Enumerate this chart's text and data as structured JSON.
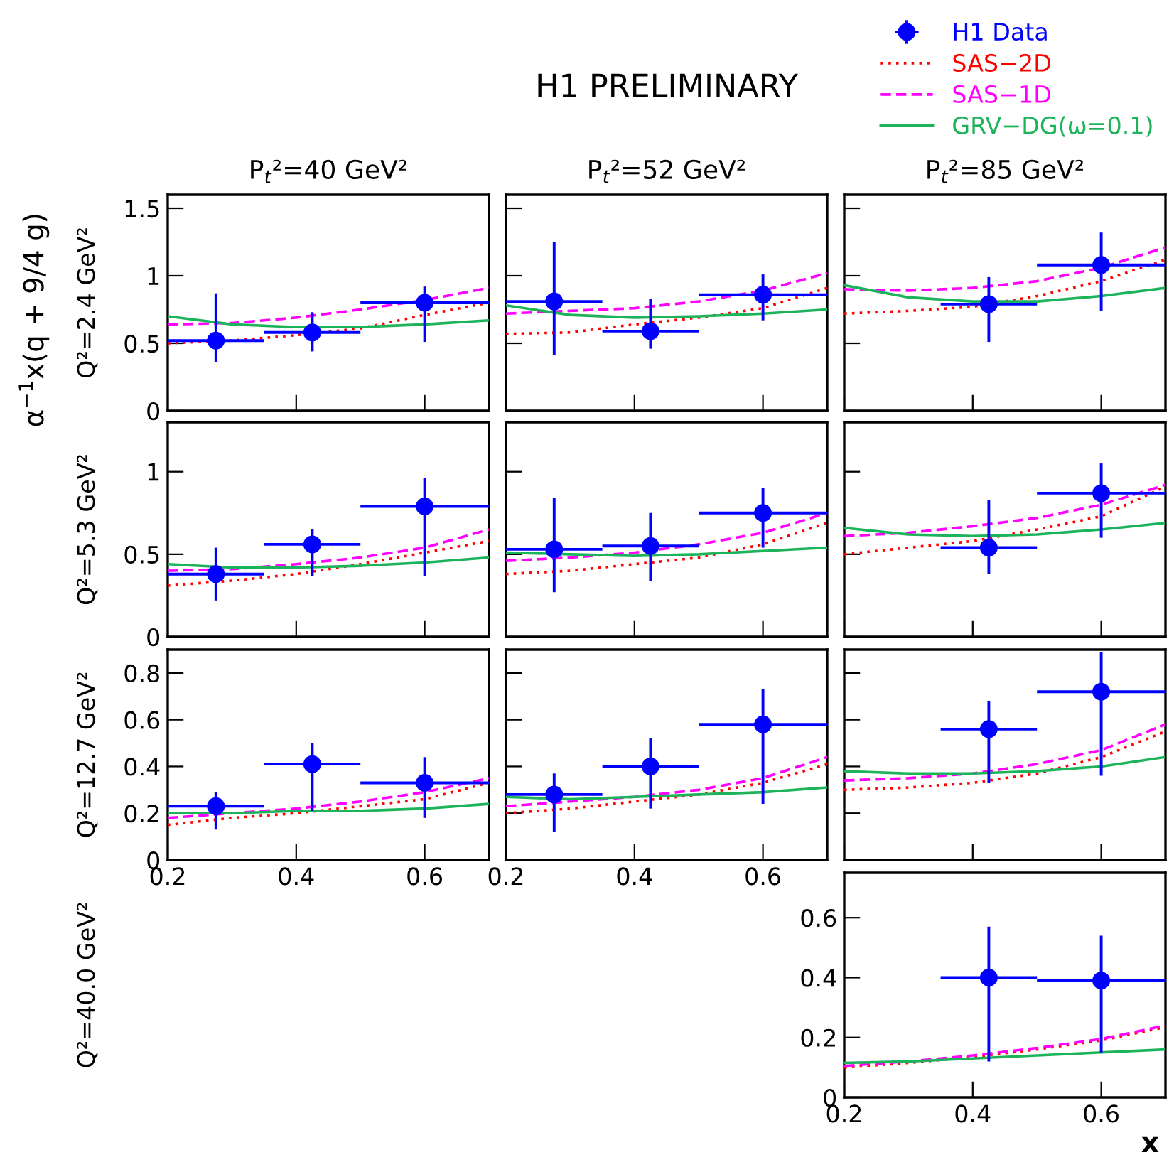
{
  "chart_data": [
    {
      "type": "scatter",
      "title": "P$_{t}$²=40 GeV²",
      "ylabel": "Q²=2.4 GeV²",
      "annotations": [
        "α$^{−1}$x(q + 9/4 g)"
      ],
      "xlim": [
        0.2,
        0.7
      ],
      "ylim": [
        0,
        1.6
      ],
      "xticks": [
        0.2,
        0.4,
        0.6
      ],
      "yticks": [
        0,
        0.5,
        1,
        1.5
      ],
      "tick_labels": "y",
      "series": [
        {
          "color": "#0000ff",
          "marker": "circle",
          "x": [
            0.275,
            0.425,
            0.6
          ],
          "values": [
            0.52,
            0.58,
            0.8
          ],
          "errors": [
            [
              0.36,
              0.87
            ],
            [
              0.44,
              0.73
            ],
            [
              0.51,
              0.92
            ]
          ],
          "xerrors": [
            [
              0.2,
              0.35
            ],
            [
              0.35,
              0.5
            ],
            [
              0.5,
              0.7
            ]
          ]
        },
        {
          "type": "line",
          "color": "#ff0000",
          "line_style": "dotted",
          "x": [
            0.2,
            0.3,
            0.4,
            0.5,
            0.6,
            0.7
          ],
          "values": [
            0.5,
            0.52,
            0.56,
            0.61,
            0.71,
            0.8
          ]
        },
        {
          "type": "line",
          "color": "#ff00ff",
          "line_style": "dashed",
          "x": [
            0.2,
            0.3,
            0.4,
            0.5,
            0.6,
            0.7
          ],
          "values": [
            0.64,
            0.65,
            0.69,
            0.75,
            0.82,
            0.91
          ]
        },
        {
          "type": "line",
          "color": "#1db35a",
          "line_style": "solid",
          "x": [
            0.2,
            0.3,
            0.4,
            0.5,
            0.6,
            0.7
          ],
          "values": [
            0.7,
            0.64,
            0.62,
            0.62,
            0.64,
            0.67
          ]
        }
      ]
    },
    {
      "type": "scatter",
      "title": "P$_{t}$²=52 GeV²",
      "annotations": [
        "H1 PRELIMINARY"
      ],
      "xlim": [
        0.2,
        0.7
      ],
      "ylim": [
        0,
        1.6
      ],
      "xticks": [
        0.2,
        0.4,
        0.6
      ],
      "yticks": [
        0,
        0.5,
        1,
        1.5
      ],
      "tick_labels": false,
      "series": [
        {
          "color": "#0000ff",
          "marker": "circle",
          "x": [
            0.275,
            0.425,
            0.6
          ],
          "values": [
            0.81,
            0.59,
            0.86
          ],
          "errors": [
            [
              0.41,
              1.25
            ],
            [
              0.46,
              0.83
            ],
            [
              0.67,
              1.01
            ]
          ],
          "xerrors": [
            [
              0.2,
              0.35
            ],
            [
              0.35,
              0.5
            ],
            [
              0.5,
              0.7
            ]
          ]
        },
        {
          "type": "line",
          "color": "#ff0000",
          "line_style": "dotted",
          "x": [
            0.2,
            0.3,
            0.4,
            0.5,
            0.6,
            0.7
          ],
          "values": [
            0.57,
            0.58,
            0.64,
            0.69,
            0.76,
            0.91
          ]
        },
        {
          "type": "line",
          "color": "#ff00ff",
          "line_style": "dashed",
          "x": [
            0.2,
            0.3,
            0.4,
            0.5,
            0.6,
            0.7
          ],
          "values": [
            0.72,
            0.74,
            0.76,
            0.81,
            0.89,
            1.02
          ]
        },
        {
          "type": "line",
          "color": "#1db35a",
          "line_style": "solid",
          "x": [
            0.2,
            0.3,
            0.4,
            0.5,
            0.6,
            0.7
          ],
          "values": [
            0.78,
            0.71,
            0.69,
            0.7,
            0.72,
            0.75
          ]
        }
      ]
    },
    {
      "type": "scatter",
      "title": "P$_{t}$²=85 GeV²",
      "legend": "top right",
      "xlim": [
        0.2,
        0.7
      ],
      "ylim": [
        0,
        1.6
      ],
      "xticks": [
        0.2,
        0.4,
        0.6
      ],
      "yticks": [
        0,
        0.5,
        1,
        1.5
      ],
      "tick_labels": false,
      "series": [
        {
          "name": "H1 Data",
          "color": "#0000ff",
          "marker": "circle",
          "x": [
            0.425,
            0.6
          ],
          "values": [
            0.79,
            1.08
          ],
          "errors": [
            [
              0.51,
              0.99
            ],
            [
              0.74,
              1.32
            ]
          ],
          "xerrors": [
            [
              0.35,
              0.5
            ],
            [
              0.5,
              0.7
            ]
          ]
        },
        {
          "type": "line",
          "name": "SAS−2D",
          "color": "#ff0000",
          "line_style": "dotted",
          "x": [
            0.2,
            0.3,
            0.4,
            0.5,
            0.6,
            0.7
          ],
          "values": [
            0.72,
            0.74,
            0.77,
            0.85,
            0.96,
            1.12
          ]
        },
        {
          "type": "line",
          "name": "SAS−1D",
          "color": "#ff00ff",
          "line_style": "dashed",
          "x": [
            0.2,
            0.3,
            0.4,
            0.5,
            0.6,
            0.7
          ],
          "values": [
            0.9,
            0.89,
            0.91,
            0.96,
            1.06,
            1.21
          ]
        },
        {
          "type": "line",
          "name": "GRV−DG(ω=0.1)",
          "color": "#1db35a",
          "line_style": "solid",
          "x": [
            0.2,
            0.3,
            0.4,
            0.5,
            0.6,
            0.7
          ],
          "values": [
            0.93,
            0.84,
            0.81,
            0.81,
            0.85,
            0.91
          ]
        }
      ]
    },
    {
      "type": "scatter",
      "ylabel": "Q²=5.3 GeV²",
      "xlim": [
        0.2,
        0.7
      ],
      "ylim": [
        0,
        1.3
      ],
      "xticks": [
        0.2,
        0.4,
        0.6
      ],
      "yticks": [
        0,
        0.5,
        1
      ],
      "tick_labels": "y",
      "series": [
        {
          "color": "#0000ff",
          "marker": "circle",
          "x": [
            0.275,
            0.425,
            0.6
          ],
          "values": [
            0.38,
            0.56,
            0.79
          ],
          "errors": [
            [
              0.22,
              0.54
            ],
            [
              0.37,
              0.65
            ],
            [
              0.37,
              0.96
            ]
          ],
          "xerrors": [
            [
              0.2,
              0.35
            ],
            [
              0.35,
              0.5
            ],
            [
              0.5,
              0.7
            ]
          ]
        },
        {
          "type": "line",
          "color": "#ff0000",
          "line_style": "dotted",
          "x": [
            0.2,
            0.3,
            0.4,
            0.5,
            0.6,
            0.7
          ],
          "values": [
            0.31,
            0.34,
            0.38,
            0.44,
            0.51,
            0.58
          ]
        },
        {
          "type": "line",
          "color": "#ff00ff",
          "line_style": "dashed",
          "x": [
            0.2,
            0.3,
            0.4,
            0.5,
            0.6,
            0.7
          ],
          "values": [
            0.4,
            0.41,
            0.44,
            0.48,
            0.54,
            0.65
          ]
        },
        {
          "type": "line",
          "color": "#1db35a",
          "line_style": "solid",
          "x": [
            0.2,
            0.3,
            0.4,
            0.5,
            0.6,
            0.7
          ],
          "values": [
            0.44,
            0.42,
            0.42,
            0.43,
            0.45,
            0.48
          ]
        }
      ]
    },
    {
      "type": "scatter",
      "xlim": [
        0.2,
        0.7
      ],
      "ylim": [
        0,
        1.3
      ],
      "xticks": [
        0.2,
        0.4,
        0.6
      ],
      "yticks": [
        0,
        0.5,
        1
      ],
      "tick_labels": false,
      "series": [
        {
          "color": "#0000ff",
          "marker": "circle",
          "x": [
            0.275,
            0.425,
            0.6
          ],
          "values": [
            0.53,
            0.55,
            0.75
          ],
          "errors": [
            [
              0.27,
              0.84
            ],
            [
              0.34,
              0.75
            ],
            [
              0.54,
              0.9
            ]
          ],
          "xerrors": [
            [
              0.2,
              0.35
            ],
            [
              0.35,
              0.5
            ],
            [
              0.5,
              0.7
            ]
          ]
        },
        {
          "type": "line",
          "color": "#ff0000",
          "line_style": "dotted",
          "x": [
            0.2,
            0.3,
            0.4,
            0.5,
            0.6,
            0.7
          ],
          "values": [
            0.38,
            0.4,
            0.44,
            0.48,
            0.56,
            0.69
          ]
        },
        {
          "type": "line",
          "color": "#ff00ff",
          "line_style": "dashed",
          "x": [
            0.2,
            0.3,
            0.4,
            0.5,
            0.6,
            0.7
          ],
          "values": [
            0.46,
            0.48,
            0.51,
            0.56,
            0.63,
            0.75
          ]
        },
        {
          "type": "line",
          "color": "#1db35a",
          "line_style": "solid",
          "x": [
            0.2,
            0.3,
            0.4,
            0.5,
            0.6,
            0.7
          ],
          "values": [
            0.51,
            0.5,
            0.49,
            0.5,
            0.52,
            0.54
          ]
        }
      ]
    },
    {
      "type": "scatter",
      "xlim": [
        0.2,
        0.7
      ],
      "ylim": [
        0,
        1.3
      ],
      "xticks": [
        0.2,
        0.4,
        0.6
      ],
      "yticks": [
        0,
        0.5,
        1
      ],
      "tick_labels": false,
      "series": [
        {
          "color": "#0000ff",
          "marker": "circle",
          "x": [
            0.425,
            0.6
          ],
          "values": [
            0.54,
            0.87
          ],
          "errors": [
            [
              0.38,
              0.83
            ],
            [
              0.6,
              1.05
            ]
          ],
          "xerrors": [
            [
              0.35,
              0.5
            ],
            [
              0.5,
              0.7
            ]
          ]
        },
        {
          "type": "line",
          "color": "#ff0000",
          "line_style": "dotted",
          "x": [
            0.2,
            0.3,
            0.4,
            0.5,
            0.6,
            0.7
          ],
          "values": [
            0.5,
            0.54,
            0.58,
            0.65,
            0.73,
            0.91
          ]
        },
        {
          "type": "line",
          "color": "#ff00ff",
          "line_style": "dashed",
          "x": [
            0.2,
            0.3,
            0.4,
            0.5,
            0.6,
            0.7
          ],
          "values": [
            0.61,
            0.63,
            0.67,
            0.72,
            0.8,
            0.92
          ]
        },
        {
          "type": "line",
          "color": "#1db35a",
          "line_style": "solid",
          "x": [
            0.2,
            0.3,
            0.4,
            0.5,
            0.6,
            0.7
          ],
          "values": [
            0.66,
            0.62,
            0.61,
            0.62,
            0.65,
            0.69
          ]
        }
      ]
    },
    {
      "type": "scatter",
      "ylabel": "Q²=12.7 GeV²",
      "xlim": [
        0.2,
        0.7
      ],
      "ylim": [
        0,
        0.9
      ],
      "xticks": [
        0.2,
        0.4,
        0.6
      ],
      "yticks": [
        0,
        0.2,
        0.4,
        0.6,
        0.8
      ],
      "series": [
        {
          "color": "#0000ff",
          "marker": "circle",
          "x": [
            0.275,
            0.425,
            0.6
          ],
          "values": [
            0.23,
            0.41,
            0.33
          ],
          "errors": [
            [
              0.13,
              0.29
            ],
            [
              0.21,
              0.5
            ],
            [
              0.18,
              0.44
            ]
          ],
          "xerrors": [
            [
              0.2,
              0.35
            ],
            [
              0.35,
              0.5
            ],
            [
              0.5,
              0.7
            ]
          ]
        },
        {
          "type": "line",
          "color": "#ff0000",
          "line_style": "dotted",
          "x": [
            0.2,
            0.3,
            0.4,
            0.5,
            0.6,
            0.7
          ],
          "values": [
            0.15,
            0.18,
            0.2,
            0.23,
            0.26,
            0.33
          ]
        },
        {
          "type": "line",
          "color": "#ff00ff",
          "line_style": "dashed",
          "x": [
            0.2,
            0.3,
            0.4,
            0.5,
            0.6,
            0.7
          ],
          "values": [
            0.18,
            0.2,
            0.22,
            0.25,
            0.29,
            0.35
          ]
        },
        {
          "type": "line",
          "color": "#1db35a",
          "line_style": "solid",
          "x": [
            0.2,
            0.3,
            0.4,
            0.5,
            0.6,
            0.7
          ],
          "values": [
            0.2,
            0.2,
            0.21,
            0.21,
            0.22,
            0.24
          ]
        }
      ]
    },
    {
      "type": "scatter",
      "xlim": [
        0.2,
        0.7
      ],
      "ylim": [
        0,
        0.9
      ],
      "xticks": [
        0.2,
        0.4,
        0.6
      ],
      "yticks": [
        0,
        0.2,
        0.4,
        0.6,
        0.8
      ],
      "tick_labels": "x",
      "series": [
        {
          "color": "#0000ff",
          "marker": "circle",
          "x": [
            0.275,
            0.425,
            0.6
          ],
          "values": [
            0.28,
            0.4,
            0.58
          ],
          "errors": [
            [
              0.12,
              0.37
            ],
            [
              0.22,
              0.52
            ],
            [
              0.24,
              0.73
            ]
          ],
          "xerrors": [
            [
              0.2,
              0.35
            ],
            [
              0.35,
              0.5
            ],
            [
              0.5,
              0.7
            ]
          ]
        },
        {
          "type": "line",
          "color": "#ff0000",
          "line_style": "dotted",
          "x": [
            0.2,
            0.3,
            0.4,
            0.5,
            0.6,
            0.7
          ],
          "values": [
            0.2,
            0.22,
            0.25,
            0.28,
            0.33,
            0.41
          ]
        },
        {
          "type": "line",
          "color": "#ff00ff",
          "line_style": "dashed",
          "x": [
            0.2,
            0.3,
            0.4,
            0.5,
            0.6,
            0.7
          ],
          "values": [
            0.23,
            0.25,
            0.27,
            0.3,
            0.35,
            0.44
          ]
        },
        {
          "type": "line",
          "color": "#1db35a",
          "line_style": "solid",
          "x": [
            0.2,
            0.3,
            0.4,
            0.5,
            0.6,
            0.7
          ],
          "values": [
            0.27,
            0.26,
            0.27,
            0.28,
            0.29,
            0.31
          ]
        }
      ]
    },
    {
      "type": "scatter",
      "xlim": [
        0.2,
        0.7
      ],
      "ylim": [
        0,
        0.9
      ],
      "xticks": [
        0.2,
        0.4,
        0.6
      ],
      "yticks": [
        0,
        0.2,
        0.4,
        0.6,
        0.8
      ],
      "tick_labels": false,
      "series": [
        {
          "color": "#0000ff",
          "marker": "circle",
          "x": [
            0.425,
            0.6
          ],
          "values": [
            0.56,
            0.72
          ],
          "errors": [
            [
              0.33,
              0.68
            ],
            [
              0.36,
              0.89
            ]
          ],
          "xerrors": [
            [
              0.35,
              0.5
            ],
            [
              0.5,
              0.7
            ]
          ]
        },
        {
          "type": "line",
          "color": "#ff0000",
          "line_style": "dotted",
          "x": [
            0.2,
            0.3,
            0.4,
            0.5,
            0.6,
            0.7
          ],
          "values": [
            0.3,
            0.31,
            0.33,
            0.37,
            0.44,
            0.55
          ]
        },
        {
          "type": "line",
          "color": "#ff00ff",
          "line_style": "dashed",
          "x": [
            0.2,
            0.3,
            0.4,
            0.5,
            0.6,
            0.7
          ],
          "values": [
            0.34,
            0.35,
            0.37,
            0.41,
            0.47,
            0.58
          ]
        },
        {
          "type": "line",
          "color": "#1db35a",
          "line_style": "solid",
          "x": [
            0.2,
            0.3,
            0.4,
            0.5,
            0.6,
            0.7
          ],
          "values": [
            0.38,
            0.37,
            0.37,
            0.38,
            0.4,
            0.44
          ]
        }
      ]
    },
    {
      "type": "scatter",
      "ylabel": "Q²=40.0 GeV²",
      "xlabel": "x",
      "xlim": [
        0.2,
        0.7
      ],
      "ylim": [
        0,
        0.75
      ],
      "xticks": [
        0.2,
        0.4,
        0.6
      ],
      "yticks": [
        0,
        0.2,
        0.4,
        0.6
      ],
      "series": [
        {
          "color": "#0000ff",
          "marker": "circle",
          "x": [
            0.425,
            0.6
          ],
          "values": [
            0.4,
            0.39
          ],
          "errors": [
            [
              0.12,
              0.57
            ],
            [
              0.15,
              0.54
            ]
          ],
          "xerrors": [
            [
              0.35,
              0.5
            ],
            [
              0.5,
              0.7
            ]
          ]
        },
        {
          "type": "line",
          "color": "#ff0000",
          "line_style": "dotted",
          "x": [
            0.2,
            0.3,
            0.4,
            0.5,
            0.6,
            0.7
          ],
          "values": [
            0.1,
            0.115,
            0.135,
            0.16,
            0.19,
            0.235
          ]
        },
        {
          "type": "line",
          "color": "#ff00ff",
          "line_style": "dashed",
          "x": [
            0.2,
            0.3,
            0.4,
            0.5,
            0.6,
            0.7
          ],
          "values": [
            0.105,
            0.12,
            0.14,
            0.165,
            0.195,
            0.24
          ]
        },
        {
          "type": "line",
          "color": "#1db35a",
          "line_style": "solid",
          "x": [
            0.2,
            0.3,
            0.4,
            0.5,
            0.6,
            0.7
          ],
          "values": [
            0.115,
            0.12,
            0.13,
            0.14,
            0.15,
            0.16
          ]
        }
      ]
    }
  ]
}
